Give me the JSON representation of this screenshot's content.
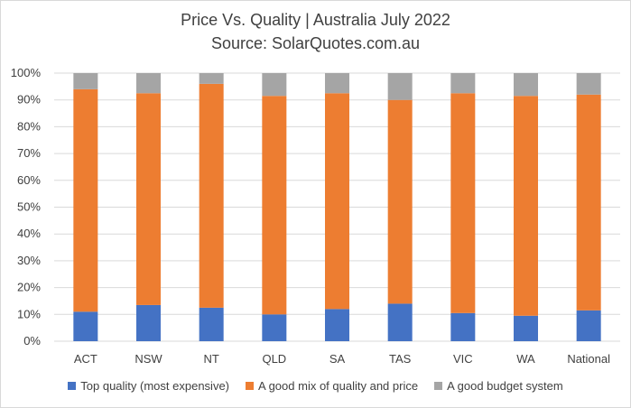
{
  "chart_data": {
    "type": "bar",
    "stacked": true,
    "title_lines": [
      "Price Vs. Quality | Australia July 2022",
      "Source: SolarQuotes.com.au"
    ],
    "categories": [
      "ACT",
      "NSW",
      "NT",
      "QLD",
      "SA",
      "TAS",
      "VIC",
      "WA",
      "National"
    ],
    "series": [
      {
        "name": "Top quality (most expensive)",
        "color": "#4472c4",
        "values": [
          11,
          13.5,
          12.5,
          10,
          12,
          14,
          10.5,
          9.5,
          11.5
        ]
      },
      {
        "name": "A good mix of quality and price",
        "color": "#ed7d31",
        "values": [
          83,
          79,
          83.5,
          81.5,
          80.5,
          76,
          82,
          82,
          80.5
        ]
      },
      {
        "name": "A good budget system",
        "color": "#a5a5a5",
        "values": [
          6,
          7.5,
          4,
          8.5,
          7.5,
          10,
          7.5,
          8.5,
          8
        ]
      }
    ],
    "yticks": [
      "0%",
      "10%",
      "20%",
      "30%",
      "40%",
      "50%",
      "60%",
      "70%",
      "80%",
      "90%",
      "100%"
    ],
    "ylim": [
      0,
      100
    ],
    "grid": true,
    "legend_position": "bottom"
  }
}
